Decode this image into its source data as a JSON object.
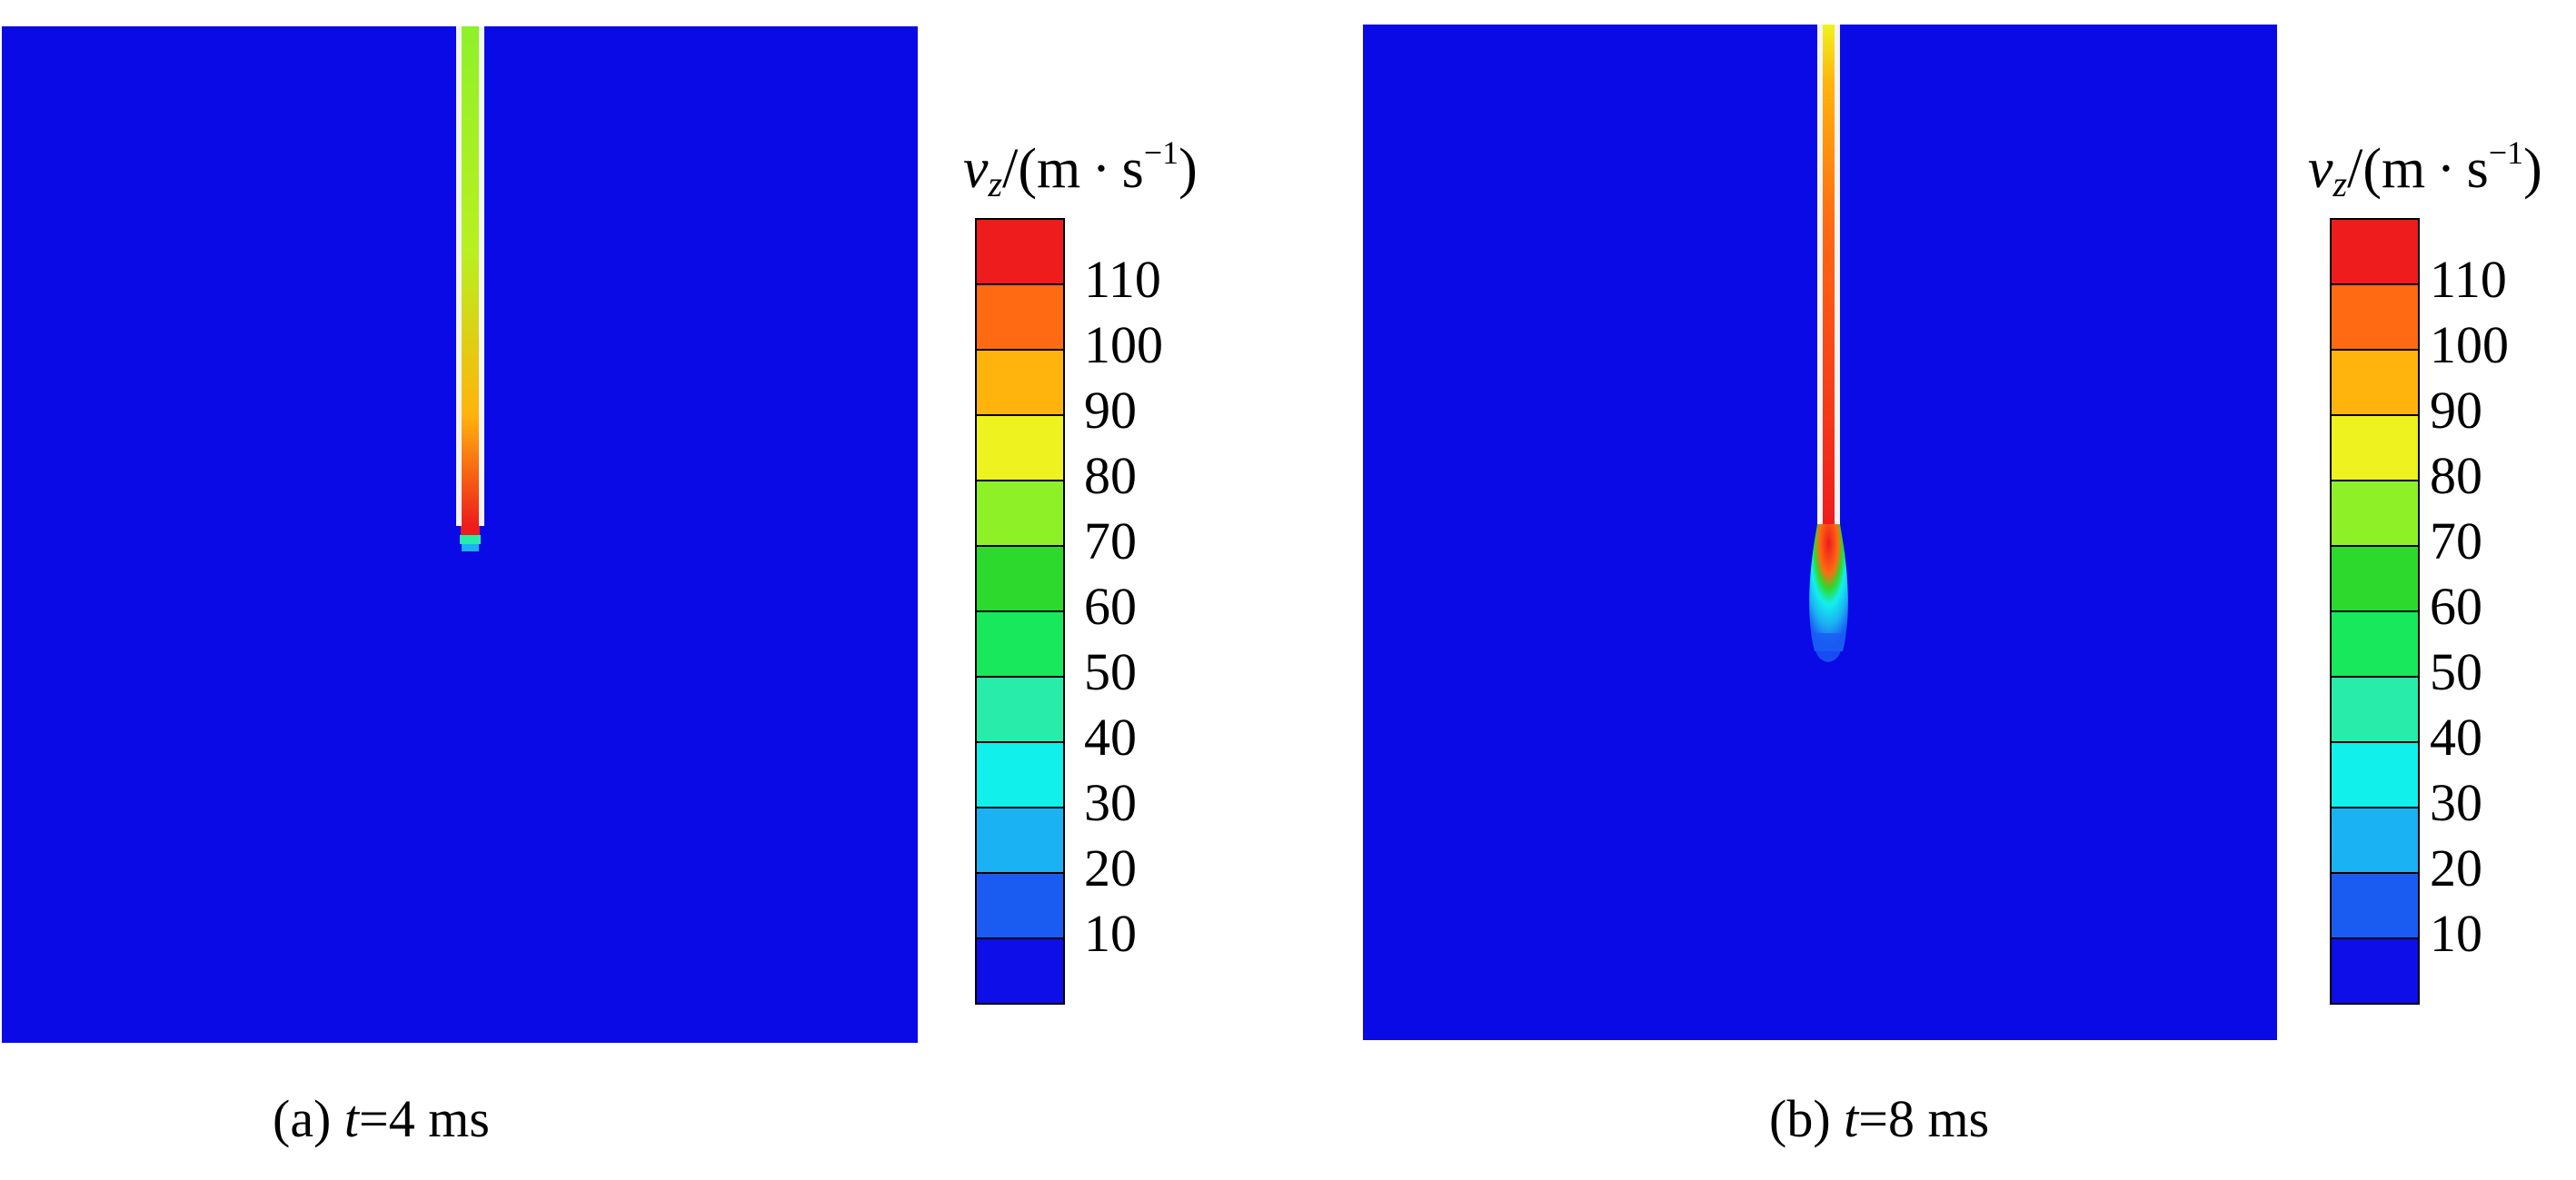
{
  "panels": [
    {
      "id": "a",
      "caption": {
        "prefix": "(a) ",
        "var": "t",
        "rest": "=4 ms"
      },
      "time_ms": 4
    },
    {
      "id": "b",
      "caption": {
        "prefix": "(b) ",
        "var": "t",
        "rest": "=8 ms"
      },
      "time_ms": 8
    }
  ],
  "legend": {
    "symbol": "v",
    "subscript": "z",
    "unit_open": "/(m · s",
    "unit_sup": "−1",
    "unit_close": ")",
    "ticks": [
      "110",
      "100",
      "90",
      "80",
      "70",
      "60",
      "50",
      "40",
      "30",
      "20",
      "10"
    ],
    "band_colors": [
      "#ee1c1c",
      "#ff6a12",
      "#ffb30c",
      "#eef21e",
      "#8ef128",
      "#2dd92d",
      "#18e85c",
      "#28ecaa",
      "#12f0ec",
      "#1ab2f2",
      "#1a5cf2",
      "#0e0ee8"
    ]
  },
  "colors": {
    "domain": "#0a0ae6",
    "tube_wall": "#f4f4f4"
  }
}
